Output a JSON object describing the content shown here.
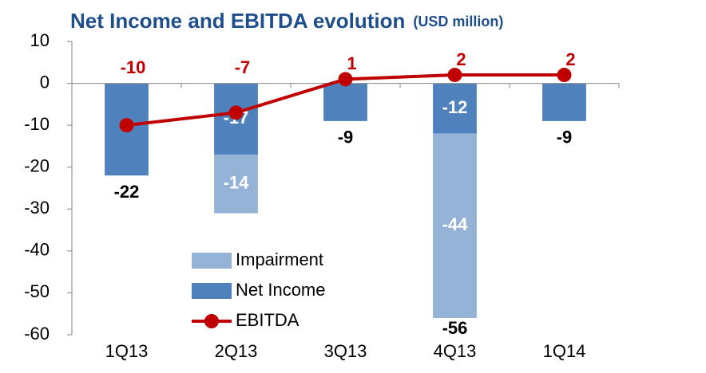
{
  "chart_data": {
    "type": "stacked-bar-line",
    "title": "Net Income and EBITDA evolution",
    "subtitle": "(USD million)",
    "categories": [
      "1Q13",
      "2Q13",
      "3Q13",
      "4Q13",
      "1Q14"
    ],
    "series": [
      {
        "name": "Net Income",
        "color": "#4f81bd",
        "kind": "bar",
        "values": [
          -22,
          -17,
          -9,
          -12,
          -9
        ]
      },
      {
        "name": "Impairment",
        "color": "#95b3d7",
        "kind": "bar",
        "values": [
          null,
          -14,
          null,
          -44,
          null
        ]
      },
      {
        "name": "EBITDA",
        "color": "#c00000",
        "kind": "line",
        "values": [
          -10,
          -7,
          1,
          2,
          2
        ]
      }
    ],
    "totals": [
      null,
      null,
      null,
      -56,
      null
    ],
    "ylim": [
      -60,
      10
    ],
    "yticks": [
      -60,
      -50,
      -40,
      -30,
      -20,
      -10,
      0,
      10
    ],
    "legend": "lower-left"
  }
}
